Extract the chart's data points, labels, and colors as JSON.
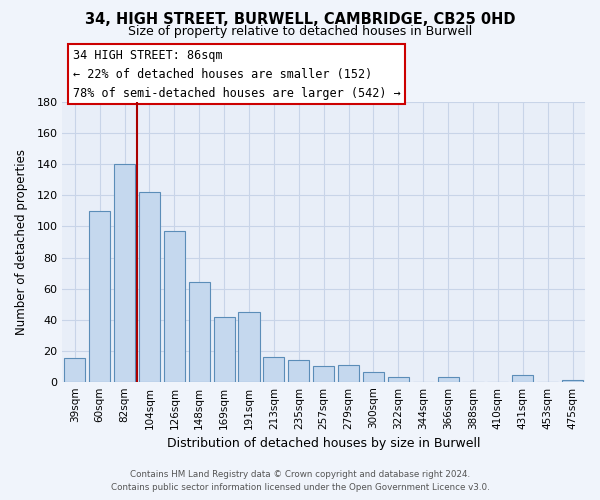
{
  "title": "34, HIGH STREET, BURWELL, CAMBRIDGE, CB25 0HD",
  "subtitle": "Size of property relative to detached houses in Burwell",
  "xlabel": "Distribution of detached houses by size in Burwell",
  "ylabel": "Number of detached properties",
  "categories": [
    "39sqm",
    "60sqm",
    "82sqm",
    "104sqm",
    "126sqm",
    "148sqm",
    "169sqm",
    "191sqm",
    "213sqm",
    "235sqm",
    "257sqm",
    "279sqm",
    "300sqm",
    "322sqm",
    "344sqm",
    "366sqm",
    "388sqm",
    "410sqm",
    "431sqm",
    "453sqm",
    "475sqm"
  ],
  "values": [
    15,
    110,
    140,
    122,
    97,
    64,
    42,
    45,
    16,
    14,
    10,
    11,
    6,
    3,
    0,
    3,
    0,
    0,
    4,
    0,
    1
  ],
  "bar_color": "#c5d8ee",
  "bar_edge_color": "#5b8db8",
  "vline_color": "#aa0000",
  "ylim": [
    0,
    180
  ],
  "yticks": [
    0,
    20,
    40,
    60,
    80,
    100,
    120,
    140,
    160,
    180
  ],
  "annotation_title": "34 HIGH STREET: 86sqm",
  "annotation_line1": "← 22% of detached houses are smaller (152)",
  "annotation_line2": "78% of semi-detached houses are larger (542) →",
  "annotation_box_color": "#ffffff",
  "annotation_box_edge": "#cc0000",
  "footer_line1": "Contains HM Land Registry data © Crown copyright and database right 2024.",
  "footer_line2": "Contains public sector information licensed under the Open Government Licence v3.0.",
  "background_color": "#f0f4fb",
  "plot_bg_color": "#e8eef8",
  "grid_color": "#c8d4e8"
}
